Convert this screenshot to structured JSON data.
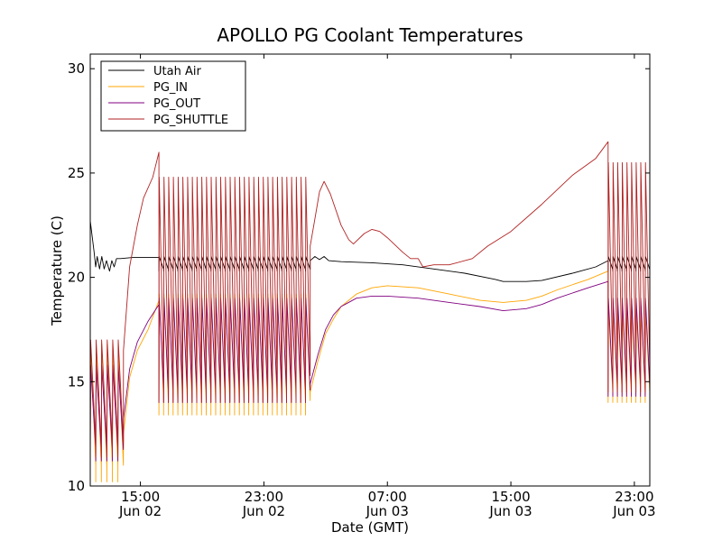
{
  "chart_data": {
    "type": "line",
    "title": "APOLLO PG Coolant Temperatures",
    "xlabel": "Date (GMT)",
    "ylabel": "Temperature (C)",
    "ylim": [
      10,
      30.7
    ],
    "xlim": [
      11.75,
      48.0
    ],
    "x_unit": "hours since Jun 02 00:00 GMT",
    "yticks": [
      10,
      15,
      20,
      25,
      30
    ],
    "xticks": [
      {
        "value": 15,
        "line1": "15:00",
        "line2": "Jun 02"
      },
      {
        "value": 23,
        "line1": "23:00",
        "line2": "Jun 02"
      },
      {
        "value": 31,
        "line1": "07:00",
        "line2": "Jun 03"
      },
      {
        "value": 39,
        "line1": "15:00",
        "line2": "Jun 03"
      },
      {
        "value": 47,
        "line1": "23:00",
        "line2": "Jun 03"
      }
    ],
    "legend_position": "top-left",
    "series": [
      {
        "name": "Utah Air",
        "color": "#000000",
        "segments": [
          {
            "kind": "points",
            "points": [
              [
                11.75,
                22.7
              ],
              [
                11.9,
                21.8
              ],
              [
                12.0,
                21.2
              ],
              [
                12.1,
                20.5
              ],
              [
                12.2,
                21.0
              ],
              [
                12.35,
                20.4
              ],
              [
                12.5,
                21.0
              ],
              [
                12.65,
                20.4
              ],
              [
                12.8,
                20.8
              ],
              [
                13.0,
                20.3
              ],
              [
                13.15,
                20.8
              ],
              [
                13.3,
                20.5
              ],
              [
                13.45,
                20.9
              ],
              [
                13.7,
                20.9
              ],
              [
                14.5,
                20.95
              ],
              [
                15.5,
                20.95
              ],
              [
                16.2,
                20.95
              ]
            ]
          },
          {
            "kind": "saw",
            "x0": 16.2,
            "x1": 26.0,
            "count": 32,
            "high": 21.0,
            "low": 20.3
          },
          {
            "kind": "points",
            "points": [
              [
                26.0,
                20.8
              ],
              [
                26.3,
                21.0
              ],
              [
                26.6,
                20.85
              ],
              [
                26.9,
                21.0
              ],
              [
                27.2,
                20.8
              ],
              [
                28.0,
                20.75
              ],
              [
                30.0,
                20.7
              ],
              [
                32.0,
                20.6
              ],
              [
                34.0,
                20.4
              ],
              [
                36.0,
                20.2
              ],
              [
                38.0,
                19.9
              ],
              [
                38.5,
                19.8
              ],
              [
                40.0,
                19.8
              ],
              [
                41.0,
                19.85
              ],
              [
                43.0,
                20.2
              ],
              [
                44.5,
                20.5
              ],
              [
                45.3,
                20.8
              ]
            ]
          },
          {
            "kind": "saw",
            "x0": 45.3,
            "x1": 48.0,
            "count": 9,
            "high": 21.0,
            "low": 20.3
          }
        ]
      },
      {
        "name": "PG_IN",
        "color": "#FFA500",
        "segments": [
          {
            "kind": "saw",
            "x0": 11.75,
            "x1": 13.9,
            "count": 6,
            "high": 16.8,
            "low": 10.2
          },
          {
            "kind": "points",
            "points": [
              [
                13.9,
                12.5
              ],
              [
                14.3,
                15.2
              ],
              [
                14.8,
                16.5
              ],
              [
                15.5,
                17.5
              ],
              [
                16.2,
                18.9
              ]
            ]
          },
          {
            "kind": "saw",
            "x0": 16.2,
            "x1": 26.0,
            "count": 32,
            "high": 19.2,
            "low": 13.4
          },
          {
            "kind": "points",
            "points": [
              [
                26.0,
                14.5
              ],
              [
                26.5,
                16.0
              ],
              [
                27.0,
                17.3
              ],
              [
                27.5,
                18.0
              ],
              [
                28.0,
                18.6
              ],
              [
                29.0,
                19.2
              ],
              [
                30.0,
                19.5
              ],
              [
                31.0,
                19.6
              ],
              [
                33.0,
                19.5
              ],
              [
                35.0,
                19.2
              ],
              [
                37.0,
                18.9
              ],
              [
                38.5,
                18.8
              ],
              [
                40.0,
                18.9
              ],
              [
                41.0,
                19.1
              ],
              [
                42.0,
                19.4
              ],
              [
                44.0,
                19.9
              ],
              [
                45.3,
                20.3
              ]
            ]
          },
          {
            "kind": "saw",
            "x0": 45.3,
            "x1": 48.0,
            "count": 9,
            "high": 18.5,
            "low": 14.0
          }
        ]
      },
      {
        "name": "PG_OUT",
        "color": "#800080",
        "segments": [
          {
            "kind": "saw",
            "x0": 11.75,
            "x1": 13.9,
            "count": 6,
            "high": 15.8,
            "low": 11.2
          },
          {
            "kind": "points",
            "points": [
              [
                13.9,
                13.2
              ],
              [
                14.3,
                15.6
              ],
              [
                14.8,
                16.9
              ],
              [
                15.5,
                17.9
              ],
              [
                16.2,
                18.7
              ]
            ]
          },
          {
            "kind": "saw",
            "x0": 16.2,
            "x1": 26.0,
            "count": 32,
            "high": 19.0,
            "low": 14.0
          },
          {
            "kind": "points",
            "points": [
              [
                26.0,
                14.9
              ],
              [
                26.5,
                16.3
              ],
              [
                27.0,
                17.5
              ],
              [
                27.5,
                18.2
              ],
              [
                28.0,
                18.6
              ],
              [
                29.0,
                19.0
              ],
              [
                30.0,
                19.1
              ],
              [
                31.0,
                19.1
              ],
              [
                33.0,
                19.0
              ],
              [
                35.0,
                18.8
              ],
              [
                37.0,
                18.6
              ],
              [
                38.5,
                18.4
              ],
              [
                40.0,
                18.5
              ],
              [
                41.0,
                18.7
              ],
              [
                42.0,
                19.0
              ],
              [
                44.0,
                19.5
              ],
              [
                45.3,
                19.8
              ]
            ]
          },
          {
            "kind": "saw",
            "x0": 45.3,
            "x1": 48.0,
            "count": 9,
            "high": 19.0,
            "low": 14.3
          }
        ]
      },
      {
        "name": "PG_SHUTTLE",
        "color": "#B22222",
        "segments": [
          {
            "kind": "saw",
            "x0": 11.75,
            "x1": 13.9,
            "count": 6,
            "high": 17.0,
            "low": 11.4
          },
          {
            "kind": "points",
            "points": [
              [
                13.9,
                16.5
              ],
              [
                14.3,
                20.5
              ],
              [
                14.8,
                22.5
              ],
              [
                15.2,
                23.8
              ],
              [
                15.8,
                24.8
              ],
              [
                16.2,
                26.0
              ]
            ]
          },
          {
            "kind": "saw",
            "x0": 16.2,
            "x1": 26.0,
            "count": 32,
            "high": 24.8,
            "low": 14.0
          },
          {
            "kind": "points",
            "points": [
              [
                26.0,
                21.5
              ],
              [
                26.3,
                22.8
              ],
              [
                26.6,
                24.1
              ],
              [
                26.9,
                24.6
              ],
              [
                27.3,
                24.0
              ],
              [
                28.0,
                22.5
              ],
              [
                28.5,
                21.8
              ],
              [
                28.8,
                21.6
              ],
              [
                29.5,
                22.1
              ],
              [
                30.0,
                22.3
              ],
              [
                30.5,
                22.2
              ],
              [
                31.0,
                21.9
              ],
              [
                32.0,
                21.2
              ],
              [
                32.5,
                20.9
              ],
              [
                33.0,
                20.9
              ],
              [
                33.3,
                20.5
              ],
              [
                34.0,
                20.6
              ],
              [
                35.0,
                20.6
              ],
              [
                36.5,
                20.9
              ],
              [
                37.5,
                21.5
              ],
              [
                39.0,
                22.2
              ],
              [
                41.0,
                23.5
              ],
              [
                43.0,
                24.9
              ],
              [
                44.5,
                25.7
              ],
              [
                45.3,
                26.5
              ]
            ]
          },
          {
            "kind": "saw",
            "x0": 45.3,
            "x1": 48.0,
            "count": 9,
            "high": 25.5,
            "low": 14.5
          }
        ]
      }
    ]
  }
}
